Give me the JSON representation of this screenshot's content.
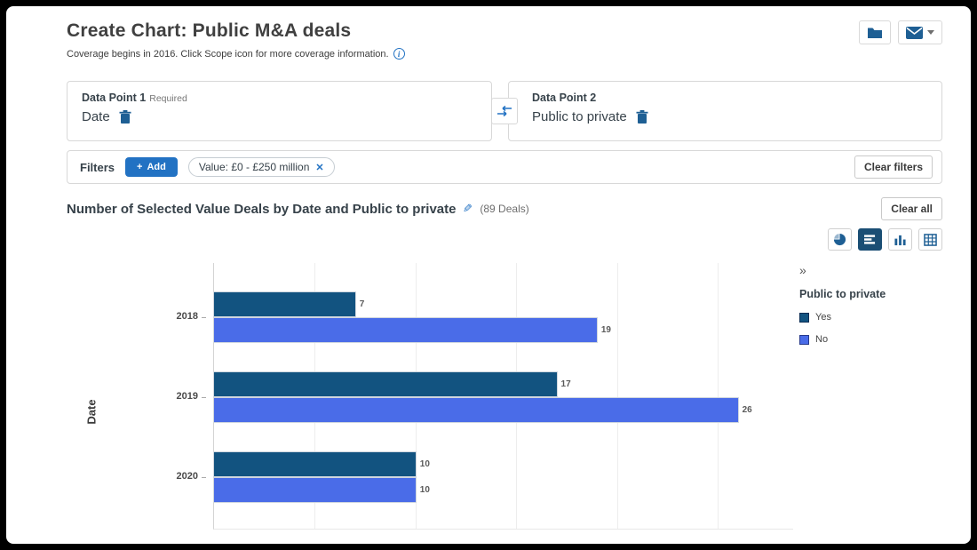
{
  "header": {
    "title": "Create Chart: Public M&A deals",
    "subtitle": "Coverage begins in 2016. Click Scope icon for more coverage information.",
    "info_glyph": "i"
  },
  "data_points": {
    "point1": {
      "label": "Data Point 1",
      "required_tag": "Required",
      "value": "Date"
    },
    "point2": {
      "label": "Data Point 2",
      "value": "Public to private"
    }
  },
  "filters": {
    "label": "Filters",
    "add_icon": "+",
    "add_label": "Add",
    "chips": [
      {
        "label": "Value: £0 - £250 million",
        "close_icon": "✕"
      }
    ],
    "clear_button": "Clear filters"
  },
  "chart_header": {
    "title": "Number of Selected Value Deals by Date and Public to private",
    "edit_icon": "✎",
    "deals_count": "(89 Deals)",
    "clear_all_button": "Clear all"
  },
  "chart_toolbar": {
    "buttons": [
      {
        "name": "pie-chart-icon",
        "active": false
      },
      {
        "name": "horizontal-bar-chart-icon",
        "active": true
      },
      {
        "name": "vertical-bar-chart-icon",
        "active": false
      },
      {
        "name": "table-icon",
        "active": false
      }
    ]
  },
  "chart_data": {
    "type": "bar",
    "orientation": "horizontal",
    "title": "Number of Selected Value Deals by Date and Public to private",
    "total_deals": 89,
    "categories": [
      "2018",
      "2019",
      "2020"
    ],
    "series": [
      {
        "name": "Yes",
        "color": "#125380",
        "values": [
          7,
          17,
          10
        ]
      },
      {
        "name": "No",
        "color": "#4A6CE8",
        "values": [
          19,
          26,
          10
        ]
      }
    ],
    "xlabel": "",
    "ylabel": "Date",
    "xlim": [
      0,
      28.75
    ],
    "gridlines": [
      5,
      10,
      15,
      20,
      25
    ],
    "grid": true,
    "legend_position": "right",
    "legend_title": "Public to private",
    "legend_collapse_icon": "»",
    "data_labels": true
  },
  "colors": {
    "accent_blue": "#2272C3",
    "icon_blue": "#1E5F94",
    "active_toolbar_bg": "#1A4E74",
    "bar_yes": "#125380",
    "bar_no": "#4A6CE8"
  }
}
